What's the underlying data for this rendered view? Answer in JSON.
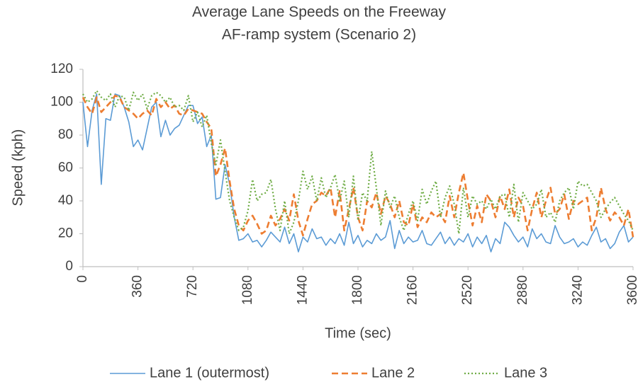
{
  "chart_data": {
    "type": "line",
    "title": "Average Lane Speeds on the Freeway",
    "subtitle": "AF-ramp system (Scenario 2)",
    "x_label": "Time (sec)",
    "y_label": "Speed (kph)",
    "x": [
      0,
      30,
      60,
      90,
      120,
      150,
      180,
      210,
      240,
      270,
      300,
      330,
      360,
      390,
      420,
      450,
      480,
      510,
      540,
      570,
      600,
      630,
      660,
      690,
      720,
      750,
      780,
      810,
      840,
      870,
      900,
      930,
      960,
      990,
      1020,
      1050,
      1080,
      1110,
      1140,
      1170,
      1200,
      1230,
      1260,
      1290,
      1320,
      1350,
      1380,
      1410,
      1440,
      1470,
      1500,
      1530,
      1560,
      1590,
      1620,
      1650,
      1680,
      1710,
      1740,
      1770,
      1800,
      1830,
      1860,
      1890,
      1920,
      1950,
      1980,
      2010,
      2040,
      2070,
      2100,
      2130,
      2160,
      2190,
      2220,
      2250,
      2280,
      2310,
      2340,
      2370,
      2400,
      2430,
      2460,
      2490,
      2520,
      2550,
      2580,
      2610,
      2640,
      2670,
      2700,
      2730,
      2760,
      2790,
      2820,
      2850,
      2880,
      2910,
      2940,
      2970,
      3000,
      3030,
      3060,
      3090,
      3120,
      3150,
      3180,
      3210,
      3240,
      3270,
      3300,
      3330,
      3360,
      3390,
      3420,
      3450,
      3480,
      3510,
      3540,
      3570,
      3600
    ],
    "series": [
      {
        "name": "Lane 1 (outermost)",
        "color": "#5b9bd5",
        "line_style": "solid",
        "values": [
          100,
          73,
          95,
          105,
          50,
          90,
          89,
          105,
          104,
          97,
          88,
          73,
          77,
          71,
          84,
          97,
          100,
          79,
          89,
          80,
          84,
          86,
          92,
          98,
          98,
          87,
          91,
          73,
          80,
          41,
          42,
          62,
          50,
          30,
          16,
          17,
          20,
          15,
          16,
          12,
          16,
          21,
          18,
          15,
          24,
          14,
          20,
          9,
          18,
          15,
          23,
          17,
          18,
          13,
          17,
          14,
          20,
          13,
          27,
          14,
          19,
          12,
          16,
          14,
          20,
          16,
          18,
          28,
          11,
          22,
          14,
          18,
          15,
          16,
          22,
          14,
          13,
          17,
          21,
          14,
          18,
          13,
          17,
          15,
          20,
          12,
          18,
          14,
          19,
          9,
          17,
          14,
          27,
          24,
          19,
          15,
          18,
          12,
          23,
          17,
          20,
          15,
          14,
          25,
          18,
          14,
          15,
          17,
          12,
          15,
          13,
          19,
          24,
          15,
          17,
          11,
          14,
          21,
          25,
          15,
          18
        ]
      },
      {
        "name": "Lane 2",
        "color": "#ed7d31",
        "line_style": "dashed",
        "values": [
          103,
          97,
          93,
          103,
          94,
          97,
          100,
          104,
          103,
          97,
          95,
          93,
          90,
          93,
          95,
          92,
          102,
          97,
          100,
          96,
          98,
          93,
          92,
          96,
          95,
          94,
          93,
          88,
          84,
          55,
          62,
          72,
          52,
          35,
          25,
          22,
          28,
          31,
          26,
          20,
          22,
          31,
          25,
          29,
          35,
          28,
          44,
          28,
          19,
          29,
          38,
          40,
          45,
          43,
          48,
          30,
          46,
          22,
          35,
          48,
          30,
          22,
          40,
          36,
          45,
          32,
          43,
          38,
          30,
          40,
          27,
          25,
          38,
          24,
          30,
          27,
          33,
          30,
          32,
          27,
          43,
          30,
          45,
          57,
          40,
          25,
          37,
          27,
          44,
          40,
          30,
          43,
          35,
          47,
          30,
          42,
          37,
          22,
          35,
          45,
          30,
          40,
          48,
          32,
          35,
          44,
          29,
          40,
          38,
          40,
          42,
          22,
          30,
          48,
          35,
          28,
          33,
          30,
          25,
          35,
          18
        ]
      },
      {
        "name": "Lane 3",
        "color": "#70ad47",
        "line_style": "dotted",
        "values": [
          105,
          100,
          102,
          107,
          103,
          101,
          105,
          97,
          104,
          103,
          95,
          106,
          101,
          105,
          96,
          104,
          106,
          104,
          100,
          103,
          97,
          98,
          95,
          104,
          88,
          94,
          85,
          92,
          75,
          62,
          77,
          58,
          40,
          30,
          22,
          24,
          34,
          53,
          40,
          44,
          45,
          53,
          35,
          22,
          40,
          20,
          27,
          40,
          58,
          47,
          55,
          40,
          54,
          42,
          48,
          56,
          40,
          52,
          30,
          55,
          28,
          45,
          40,
          70,
          48,
          25,
          46,
          36,
          43,
          30,
          22,
          32,
          40,
          28,
          47,
          38,
          46,
          52,
          30,
          42,
          49,
          38,
          20,
          48,
          30,
          43,
          38,
          40,
          35,
          41,
          35,
          43,
          44,
          30,
          50,
          27,
          45,
          40,
          35,
          38,
          47,
          30,
          33,
          27,
          40,
          45,
          48,
          35,
          52,
          49,
          50,
          45,
          40,
          30,
          35,
          39,
          42,
          37,
          32,
          28,
          22
        ]
      }
    ],
    "xlim": [
      0,
      3600
    ],
    "xticks": [
      0,
      360,
      720,
      1080,
      1440,
      1800,
      2160,
      2520,
      2880,
      3240,
      3600
    ],
    "ylim": [
      0,
      120
    ],
    "yticks": [
      0,
      20,
      40,
      60,
      80,
      100,
      120
    ],
    "grid": false,
    "legend": "bottom"
  }
}
